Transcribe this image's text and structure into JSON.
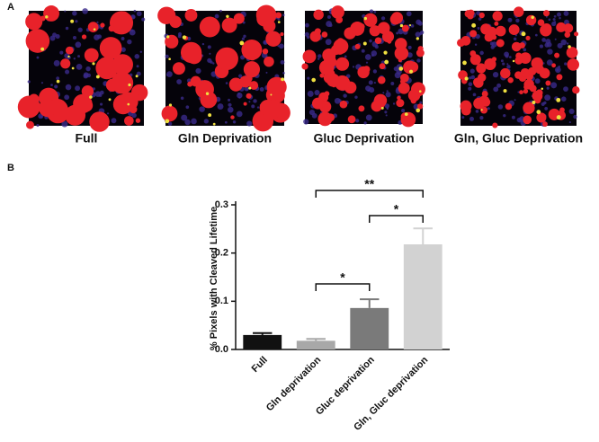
{
  "panels": {
    "a_label": "A",
    "b_label": "B"
  },
  "images": [
    {
      "caption": "Full"
    },
    {
      "caption": "Gln Deprivation"
    },
    {
      "caption": "Gluc Deprivation"
    },
    {
      "caption": "Gln, Gluc Deprivation"
    }
  ],
  "chart_data": {
    "type": "bar",
    "y_label": "% Pixels with Cleaved Lifetime",
    "categories": [
      "Full",
      "Gln deprivation",
      "Gluc deprivation",
      "Gln, Gluc deprivation"
    ],
    "values": [
      0.03,
      0.018,
      0.086,
      0.218
    ],
    "errors": [
      0.004,
      0.004,
      0.018,
      0.033
    ],
    "colors": [
      "#111111",
      "#a8a8a8",
      "#7a7a7a",
      "#d2d2d2"
    ],
    "ylim": [
      0,
      0.3
    ],
    "yticks": [
      {
        "value": 0,
        "label": "0.0"
      },
      0.1,
      0.2,
      0.3
    ],
    "annotations": [
      {
        "text": "**",
        "between": [
          1,
          3
        ]
      },
      {
        "text": "*",
        "between": [
          2,
          3
        ]
      },
      {
        "text": "*",
        "between": [
          1,
          2
        ]
      }
    ]
  }
}
